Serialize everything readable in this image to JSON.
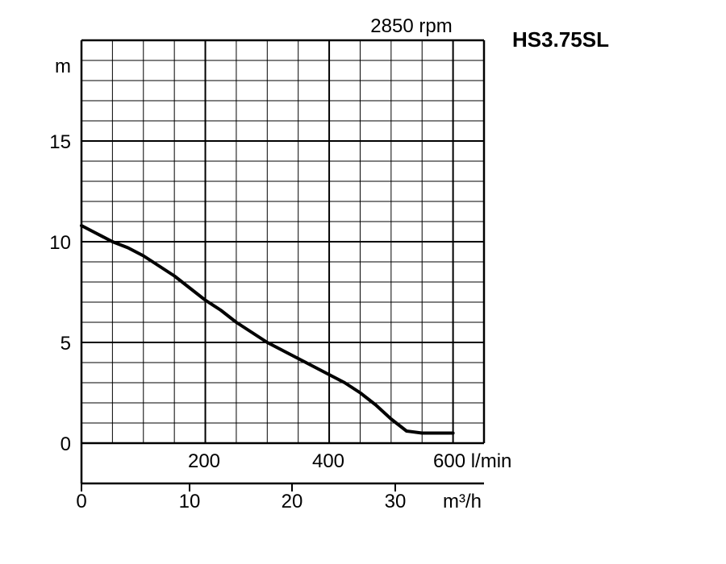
{
  "chart_data": {
    "type": "line",
    "model": "HS3.75SL",
    "speed_label": "2850 rpm",
    "y_unit": "m",
    "y_ticks": [
      "15",
      "10",
      "5",
      "0"
    ],
    "ylim": [
      0,
      20
    ],
    "x_unit_primary": "l/min",
    "x_ticks_primary": [
      "200",
      "400",
      "600 l/min"
    ],
    "xlim_primary": [
      0,
      650
    ],
    "x_unit_secondary": "m³/h",
    "x_ticks_secondary": [
      "0",
      "10",
      "20",
      "30",
      "m³/h"
    ],
    "grid": true,
    "series": [
      {
        "x": [
          0,
          25,
          50,
          75,
          100,
          125,
          150,
          175,
          200,
          225,
          250,
          275,
          300,
          325,
          350,
          375,
          400,
          425,
          450,
          475,
          500,
          525,
          550,
          575,
          600
        ],
        "y": [
          10.8,
          10.4,
          10.0,
          9.7,
          9.3,
          8.8,
          8.3,
          7.7,
          7.1,
          6.6,
          6.0,
          5.5,
          5.0,
          4.6,
          4.2,
          3.8,
          3.4,
          3.0,
          2.5,
          1.9,
          1.2,
          0.6,
          0.5,
          0.5,
          0.5
        ]
      }
    ]
  }
}
